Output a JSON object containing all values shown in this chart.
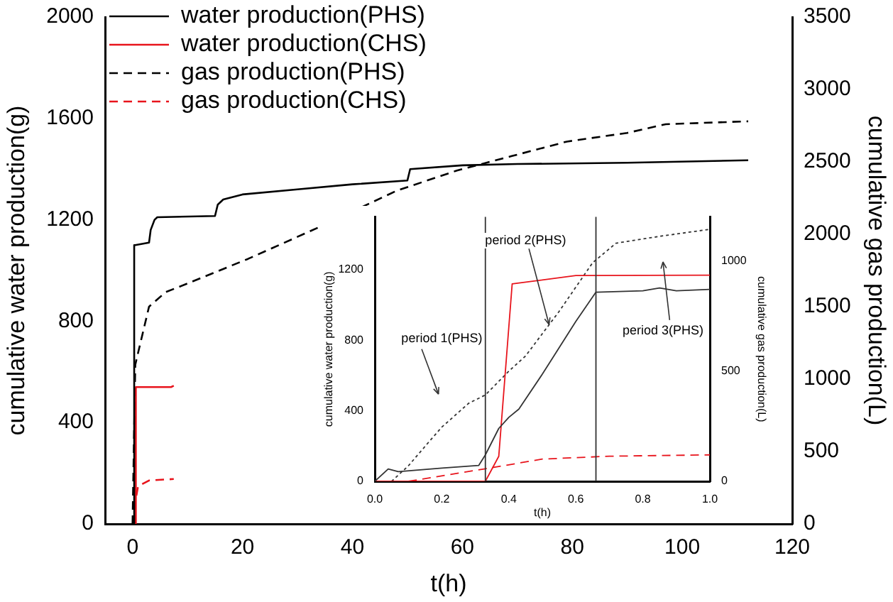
{
  "chart_data": [
    {
      "type": "line",
      "xlabel": "t(h)",
      "ylabel": "cumulative water production(g)",
      "y2label": "cumulative gas production(L)",
      "xlim": [
        -5,
        120
      ],
      "xticks": [
        0,
        20,
        40,
        60,
        80,
        100,
        120
      ],
      "ylim": [
        0,
        2000
      ],
      "yticks": [
        0,
        400,
        800,
        1200,
        1600,
        2000
      ],
      "y2lim": [
        0,
        3500
      ],
      "y2ticks": [
        0,
        500,
        1000,
        1500,
        2000,
        2500,
        3000,
        3500
      ],
      "legend": "top left",
      "grid": false,
      "marker": "none",
      "series": [
        {
          "name": "water production(PHS)",
          "color": "#000000",
          "line_style": "solid",
          "x": [
            0,
            0.25,
            0.3,
            0.5,
            3,
            3.3,
            4,
            4.5,
            15,
            15.5,
            16.5,
            20,
            30,
            40,
            50,
            50.5,
            60,
            70,
            90,
            112
          ],
          "values": [
            0,
            0,
            1100,
            1100,
            1110,
            1160,
            1200,
            1210,
            1215,
            1260,
            1280,
            1300,
            1320,
            1340,
            1355,
            1400,
            1415,
            1420,
            1425,
            1435
          ]
        },
        {
          "name": "water production(CHS)",
          "color": "#e8141c",
          "line_style": "solid",
          "x": [
            0.45,
            0.6,
            7,
            7.5
          ],
          "values": [
            0,
            540,
            540,
            545
          ]
        },
        {
          "name": "gas production(PHS)",
          "color": "#000000",
          "line_style": "dashed",
          "axis": "y2",
          "x": [
            0,
            0.5,
            1,
            3,
            6,
            10,
            21,
            34,
            48,
            59,
            69,
            79,
            90,
            97,
            112
          ],
          "values": [
            0,
            1100,
            1180,
            1500,
            1600,
            1660,
            1830,
            2050,
            2300,
            2440,
            2540,
            2640,
            2700,
            2760,
            2780
          ]
        },
        {
          "name": "gas production(CHS)",
          "color": "#e8141c",
          "line_style": "dashed",
          "axis": "y2",
          "x": [
            0.45,
            0.5,
            1,
            3,
            7.5
          ],
          "values": [
            0,
            150,
            260,
            300,
            310
          ]
        }
      ]
    },
    {
      "type": "line",
      "xlabel": "t(h)",
      "ylabel": "cumulative water production(g)",
      "y2label": "cumulative gas production(L)",
      "xlim": [
        0,
        1
      ],
      "xticks": [
        {
          "value": 0,
          "label": "0.0"
        },
        {
          "value": 0.2,
          "label": "0.2"
        },
        {
          "value": 0.4,
          "label": "0.4"
        },
        {
          "value": 0.6,
          "label": "0.6"
        },
        {
          "value": 0.8,
          "label": "0.8"
        },
        {
          "value": 1,
          "label": "1.0"
        }
      ],
      "ylim": [
        0,
        1500
      ],
      "yticks": [
        0,
        400,
        800,
        1200
      ],
      "y2lim": [
        0,
        1200
      ],
      "y2ticks": [
        0,
        500,
        1000
      ],
      "legend": false,
      "grid": false,
      "marker": "none",
      "series": [
        {
          "color": "#333333",
          "line_style": "solid",
          "x": [
            0,
            0.04,
            0.07,
            0.2,
            0.31,
            0.33,
            0.37,
            0.4,
            0.43,
            0.5,
            0.6,
            0.66,
            0.8,
            0.85,
            0.9,
            1
          ],
          "values": [
            0,
            70,
            55,
            75,
            90,
            150,
            300,
            363,
            410,
            608,
            907,
            1073,
            1081,
            1097,
            1081,
            1089
          ]
        },
        {
          "color": "#e8141c",
          "line_style": "solid",
          "x": [
            0,
            0.33,
            0.37,
            0.41,
            0.6,
            1
          ],
          "values": [
            0,
            0,
            142,
            1120,
            1168,
            1170
          ]
        },
        {
          "color": "#333333",
          "line_style": "dotted",
          "axis": "y2",
          "x": [
            0.05,
            0.1,
            0.153,
            0.2,
            0.28,
            0.33,
            0.4,
            0.45,
            0.55,
            0.65,
            0.72,
            0.85,
            1
          ],
          "values": [
            0,
            70,
            164,
            246,
            354,
            392,
            500,
            569,
            771,
            992,
            1081,
            1112,
            1144
          ]
        },
        {
          "color": "#e8141c",
          "line_style": "dashed",
          "axis": "y2",
          "x": [
            0.1,
            0.33,
            0.5,
            0.7,
            1
          ],
          "values": [
            0,
            57,
            101,
            114,
            120
          ]
        }
      ],
      "ref_lines": [
        {
          "axis": "x",
          "value": 0.33,
          "color": "#333333"
        },
        {
          "axis": "x",
          "value": 0.66,
          "color": "#333333"
        }
      ],
      "annotations": [
        "period 1(PHS)",
        {
          "text": "period 2(PHS)",
          "x": 0.52,
          "y": 890
        },
        "period 3(PHS)"
      ]
    }
  ]
}
